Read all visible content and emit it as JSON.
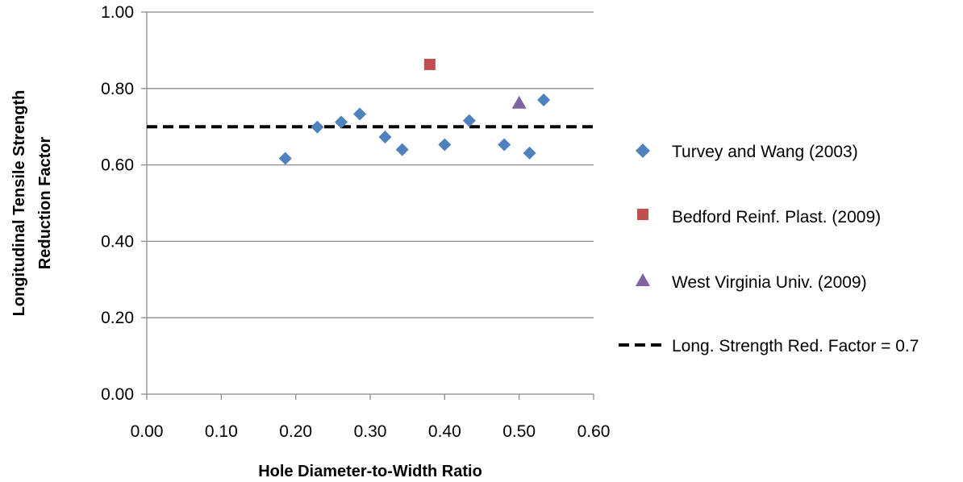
{
  "chart_data": {
    "type": "scatter",
    "xlabel": "Hole Diameter-to-Width Ratio",
    "ylabel_lines": [
      "Longitudinal Tensile Strength",
      "Reduction Factor"
    ],
    "xlim": [
      0,
      0.6
    ],
    "ylim": [
      0,
      1
    ],
    "x_ticks": [
      "0.00",
      "0.10",
      "0.20",
      "0.30",
      "0.40",
      "0.50",
      "0.60"
    ],
    "y_ticks": [
      "0.00",
      "0.20",
      "0.40",
      "0.60",
      "0.80",
      "1.00"
    ],
    "grid": "horizontal",
    "legend_position": "right",
    "series": [
      {
        "name": "Turvey and Wang (2003)",
        "marker": "diamond",
        "color": "#4F81BD",
        "points": [
          {
            "x": 0.186,
            "y": 0.617
          },
          {
            "x": 0.229,
            "y": 0.699
          },
          {
            "x": 0.261,
            "y": 0.712
          },
          {
            "x": 0.286,
            "y": 0.733
          },
          {
            "x": 0.32,
            "y": 0.673
          },
          {
            "x": 0.343,
            "y": 0.64
          },
          {
            "x": 0.4,
            "y": 0.653
          },
          {
            "x": 0.433,
            "y": 0.716
          },
          {
            "x": 0.48,
            "y": 0.653
          },
          {
            "x": 0.514,
            "y": 0.631
          },
          {
            "x": 0.533,
            "y": 0.77
          }
        ]
      },
      {
        "name": "Bedford Reinf. Plast. (2009)",
        "marker": "square",
        "color": "#C0504D",
        "points": [
          {
            "x": 0.38,
            "y": 0.863
          }
        ]
      },
      {
        "name": "West Virginia Univ. (2009)",
        "marker": "triangle",
        "color": "#8064A2",
        "points": [
          {
            "x": 0.5,
            "y": 0.762
          }
        ]
      }
    ],
    "reference_line": {
      "name": "Long. Strength Red. Factor = 0.7",
      "y": 0.7,
      "style": "dashed",
      "color": "#000000"
    }
  }
}
